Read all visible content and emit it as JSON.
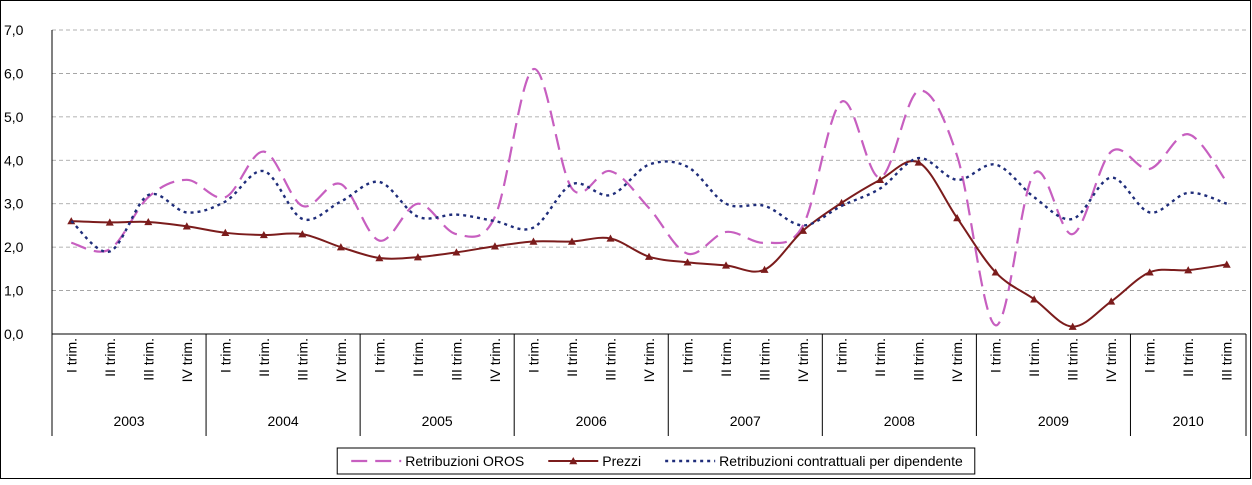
{
  "chart_data": {
    "type": "line",
    "smooth": true,
    "grid": true,
    "legend": "bottom",
    "categories": [
      "I trim.",
      "II trim.",
      "III trim.",
      "IV trim.",
      "I trim.",
      "II trim.",
      "III trim.",
      "IV trim.",
      "I trim.",
      "II trim.",
      "III trim.",
      "IV trim.",
      "I trim.",
      "II trim.",
      "III trim.",
      "IV trim.",
      "I trim.",
      "II trim.",
      "III trim.",
      "IV trim.",
      "I trim.",
      "II trim.",
      "III trim.",
      "IV trim.",
      "I trim.",
      "II trim.",
      "III trim.",
      "IV trim.",
      "I trim.",
      "II trim.",
      "III trim."
    ],
    "years": [
      "2003",
      "2004",
      "2005",
      "2006",
      "2007",
      "2008",
      "2009",
      "2010"
    ],
    "ylim": [
      0,
      7
    ],
    "yticks": [
      {
        "value": 0,
        "label": "0,0"
      },
      {
        "value": 1,
        "label": "1,0"
      },
      {
        "value": 2,
        "label": "2,0"
      },
      {
        "value": 3,
        "label": "3,0"
      },
      {
        "value": 4,
        "label": "4,0"
      },
      {
        "value": 5,
        "label": "5,0"
      },
      {
        "value": 6,
        "label": "6,0"
      },
      {
        "value": 7,
        "label": "7,0"
      }
    ],
    "series": [
      {
        "name": "Retribuzioni OROS",
        "color": "#c75fc0",
        "dash": "dashed",
        "marker": "none",
        "values": [
          2.1,
          1.95,
          3.15,
          3.55,
          3.15,
          4.2,
          2.95,
          3.45,
          2.15,
          3.0,
          2.3,
          2.7,
          6.1,
          3.35,
          3.75,
          2.9,
          1.85,
          2.35,
          2.1,
          2.5,
          5.35,
          3.6,
          5.6,
          4.1,
          0.2,
          3.7,
          2.3,
          4.2,
          3.8,
          4.6,
          3.5
        ]
      },
      {
        "name": "Prezzi",
        "color": "#7b1c1c",
        "dash": "solid",
        "marker": "triangle",
        "values": [
          2.6,
          2.57,
          2.58,
          2.48,
          2.33,
          2.28,
          2.3,
          2.0,
          1.75,
          1.77,
          1.88,
          2.02,
          2.13,
          2.13,
          2.2,
          1.78,
          1.65,
          1.58,
          1.48,
          2.38,
          3.02,
          3.55,
          3.95,
          2.67,
          1.42,
          0.8,
          0.17,
          0.75,
          1.42,
          1.47,
          1.6
        ]
      },
      {
        "name": "Retribuzioni contrattuali per dipendente",
        "color": "#1f2d7a",
        "dash": "dotted",
        "marker": "none",
        "values": [
          2.6,
          1.9,
          3.2,
          2.8,
          3.05,
          3.75,
          2.65,
          3.05,
          3.5,
          2.7,
          2.75,
          2.6,
          2.45,
          3.45,
          3.2,
          3.9,
          3.85,
          3.0,
          2.95,
          2.5,
          2.95,
          3.35,
          4.05,
          3.55,
          3.9,
          3.15,
          2.65,
          3.6,
          2.8,
          3.25,
          3.0
        ]
      }
    ]
  }
}
